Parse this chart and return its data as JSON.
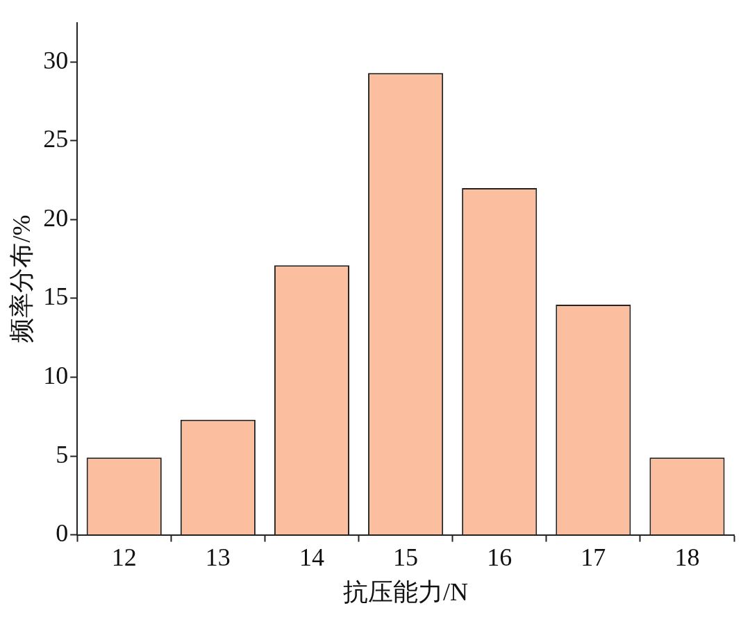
{
  "chart_data": {
    "type": "bar",
    "xlabel": "抗压能力/N",
    "ylabel": "频率分布/%",
    "categories": [
      "12",
      "13",
      "14",
      "15",
      "16",
      "17",
      "18"
    ],
    "values": [
      4.9,
      7.3,
      17.1,
      29.3,
      22.0,
      14.6,
      4.9
    ],
    "color": "#fbbf9f",
    "ylim": [
      0,
      32.5
    ],
    "yticks": [
      0,
      5,
      10,
      15,
      20,
      25,
      30
    ],
    "grid": false,
    "legend": false
  }
}
